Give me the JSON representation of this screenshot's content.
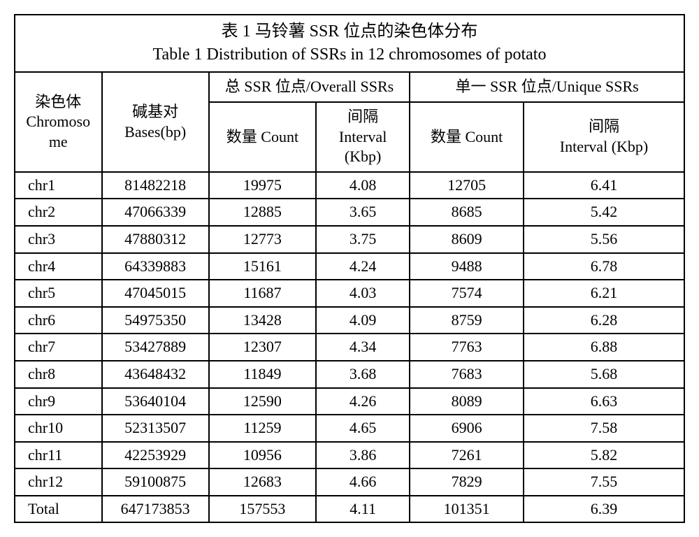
{
  "title_cn": "表 1  马铃薯 SSR 位点的染色体分布",
  "title_en": "Table 1 Distribution of SSRs in 12 chromosomes of potato",
  "header": {
    "chromosome": "染色体\nChromoso\nme",
    "bases": "碱基对\nBases(bp)",
    "overall": "总 SSR 位点/Overall SSRs",
    "unique": "单一 SSR 位点/Unique SSRs",
    "count": "数量 Count",
    "interval_overall": "间隔\nInterval\n(Kbp)",
    "interval_unique": "间隔\nInterval (Kbp)"
  },
  "rows": [
    {
      "chr": "chr1",
      "bp": "81482218",
      "oc": "19975",
      "oi": "4.08",
      "uc": "12705",
      "ui": "6.41"
    },
    {
      "chr": "chr2",
      "bp": "47066339",
      "oc": "12885",
      "oi": "3.65",
      "uc": "8685",
      "ui": "5.42"
    },
    {
      "chr": "chr3",
      "bp": "47880312",
      "oc": "12773",
      "oi": "3.75",
      "uc": "8609",
      "ui": "5.56"
    },
    {
      "chr": "chr4",
      "bp": "64339883",
      "oc": "15161",
      "oi": "4.24",
      "uc": "9488",
      "ui": "6.78"
    },
    {
      "chr": "chr5",
      "bp": "47045015",
      "oc": "11687",
      "oi": "4.03",
      "uc": "7574",
      "ui": "6.21"
    },
    {
      "chr": "chr6",
      "bp": "54975350",
      "oc": "13428",
      "oi": "4.09",
      "uc": "8759",
      "ui": "6.28"
    },
    {
      "chr": "chr7",
      "bp": "53427889",
      "oc": "12307",
      "oi": "4.34",
      "uc": "7763",
      "ui": "6.88"
    },
    {
      "chr": "chr8",
      "bp": "43648432",
      "oc": "11849",
      "oi": "3.68",
      "uc": "7683",
      "ui": "5.68"
    },
    {
      "chr": "chr9",
      "bp": "53640104",
      "oc": "12590",
      "oi": "4.26",
      "uc": "8089",
      "ui": "6.63"
    },
    {
      "chr": "chr10",
      "bp": "52313507",
      "oc": "11259",
      "oi": "4.65",
      "uc": "6906",
      "ui": "7.58"
    },
    {
      "chr": "chr11",
      "bp": "42253929",
      "oc": "10956",
      "oi": "3.86",
      "uc": "7261",
      "ui": "5.82"
    },
    {
      "chr": "chr12",
      "bp": "59100875",
      "oc": "12683",
      "oi": "4.66",
      "uc": "7829",
      "ui": "7.55"
    },
    {
      "chr": "Total",
      "bp": "647173853",
      "oc": "157553",
      "oi": "4.11",
      "uc": "101351",
      "ui": "6.39"
    }
  ],
  "style": {
    "border_color": "#000000",
    "background_color": "#ffffff",
    "text_color": "#000000",
    "title_fontsize": 24,
    "cell_fontsize": 22,
    "font_family": "Times New Roman / SimSun",
    "column_widths_pct": [
      13,
      16,
      16,
      14,
      17,
      24
    ]
  }
}
